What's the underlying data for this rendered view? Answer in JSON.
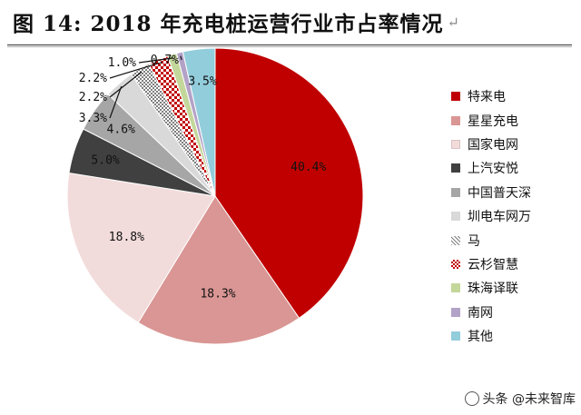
{
  "header": {
    "title": "图 14:  2018 年充电桩运营行业市占率情况",
    "arrow": "↵"
  },
  "colors": {
    "特来电": "#c00000",
    "星星充电": "#d99694",
    "国家电网": "#f2dcdb",
    "上汽安悦": "#404040",
    "中国普天深": "#a6a6a6",
    "圳电车网万": "#d9d9d9",
    "马": "#bfbfbf",
    "云杉智慧": "#c0504d",
    "珠海译联": "#c4d79b",
    "南网": "#b3a2c7",
    "其他": "#92cddc"
  },
  "chart_data": {
    "type": "pie",
    "title": "2018 年充电桩运营行业市占率情况",
    "start_angle_deg": 0,
    "direction": "clockwise",
    "slices": [
      {
        "label": "特来电",
        "value": 40.4,
        "display": "40.4%"
      },
      {
        "label": "星星充电",
        "value": 18.3,
        "display": "18.3%"
      },
      {
        "label": "国家电网",
        "value": 18.8,
        "display": "18.8%"
      },
      {
        "label": "上汽安悦",
        "value": 5.0,
        "display": "5.0%"
      },
      {
        "label": "中国普天深",
        "value": 4.6,
        "display": "4.6%"
      },
      {
        "label": "圳电车网万",
        "value": 3.3,
        "display": "3.3%"
      },
      {
        "label": "马",
        "value": 2.2,
        "display": "2.2%"
      },
      {
        "label": "云杉智慧",
        "value": 2.2,
        "display": "2.2%"
      },
      {
        "label": "珠海译联",
        "value": 1.0,
        "display": "1.0%"
      },
      {
        "label": "南网",
        "value": 0.7,
        "display": "0.7%"
      },
      {
        "label": "其他",
        "value": 3.5,
        "display": "3.5%"
      }
    ],
    "legend": [
      "特来电",
      "星星充电",
      "国家电网",
      "上汽安悦",
      "中国普天深",
      "圳电车网万",
      "马",
      "云杉智慧",
      "珠海译联",
      "南网",
      "其他"
    ],
    "legend_position": "right"
  },
  "watermark": {
    "text": "头条 @未来智库"
  }
}
